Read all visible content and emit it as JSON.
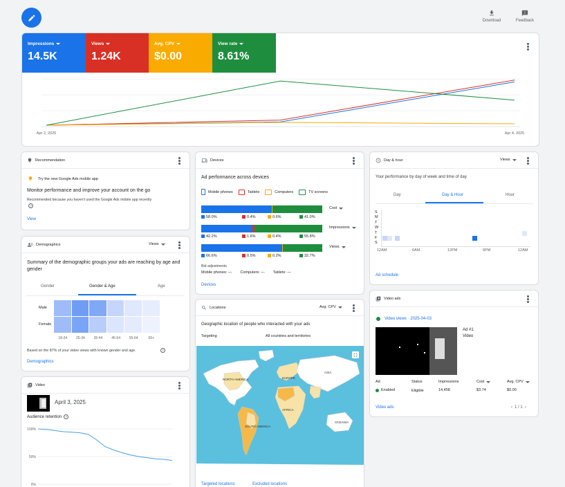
{
  "toolbar": {
    "download_label": "Download",
    "feedback_label": "Feedback"
  },
  "metrics": [
    {
      "label": "Impressions",
      "value": "14.5K",
      "color": "#1a73e8"
    },
    {
      "label": "Views",
      "value": "1.24K",
      "color": "#d93025"
    },
    {
      "label": "Avg. CPV",
      "value": "$0.00",
      "color": "#f9ab00"
    },
    {
      "label": "View rate",
      "value": "8.61%",
      "color": "#1e8e3e"
    }
  ],
  "chart_data": {
    "type": "line",
    "x": [
      "Apr 2, 2025",
      "Apr 3, 2025",
      "Apr 4, 2025"
    ],
    "x_tick_labels": [
      "Apr 2, 2025",
      "Apr 4, 2025"
    ],
    "series": [
      {
        "name": "Impressions",
        "color": "#1a73e8",
        "values": [
          0.03,
          0.1,
          0.96
        ]
      },
      {
        "name": "Views",
        "color": "#d93025",
        "values": [
          0.03,
          0.14,
          1.0
        ]
      },
      {
        "name": "Avg. CPV",
        "color": "#f9ab00",
        "values": [
          0.03,
          0.09,
          0.06
        ]
      },
      {
        "name": "View rate",
        "color": "#1e8e3e",
        "values": [
          0.03,
          0.98,
          0.57
        ]
      }
    ],
    "ylim": [
      0,
      1.1
    ],
    "grid": true,
    "legend": "none"
  },
  "recommendation": {
    "title": "Recommendation",
    "tip": "Try the new Google Ads mobile app",
    "heading": "Monitor performance and improve your account on the go",
    "reason": "Recommended because you haven't used the Google Ads mobile app recently",
    "link": "View"
  },
  "demographics": {
    "title": "Demographics",
    "dropdown": "Views",
    "summary": "Summary of the demographic groups your ads are reaching by age and gender",
    "tabs": [
      "Gender",
      "Gender & Age",
      "Age"
    ],
    "active_tab": 1,
    "rows": [
      "Male",
      "Female"
    ],
    "cols": [
      "18-24",
      "25-34",
      "35-44",
      "45-54",
      "55-64",
      "65+"
    ],
    "heat_colors": [
      [
        "#9fbcf8",
        "#6f9df4",
        "#80a8f6",
        "#c6d6fb",
        "#dfe8fd",
        "#e6edfd"
      ],
      [
        "#9fbcf8",
        "#7aa4f5",
        "#b8cdfa",
        "#dbe5fd",
        "#e4ebfd",
        "#eef2fe"
      ]
    ],
    "footnote": "Based on the 87% of your video views with known gender and age.",
    "link": "Demographics"
  },
  "video": {
    "title": "Video",
    "date": "April 3, 2025",
    "retention_label": "Audience retention",
    "y_ticks": [
      "100%",
      "50%",
      "0%"
    ],
    "retention": [
      1.0,
      0.99,
      0.97,
      0.95,
      0.94,
      0.93,
      0.9,
      0.8,
      0.68,
      0.62,
      0.57,
      0.53,
      0.5,
      0.48,
      0.46,
      0.45,
      0.43
    ]
  },
  "devices": {
    "title": "Devices",
    "subtitle": "Ad performance across devices",
    "legend": [
      {
        "label": "Mobile phones",
        "color": "#1a73e8"
      },
      {
        "label": "Tablets",
        "color": "#d93025"
      },
      {
        "label": "Computers",
        "color": "#f9ab00"
      },
      {
        "label": "TV screens",
        "color": "#1e8e3e"
      }
    ],
    "rows": [
      {
        "metric": "Cost",
        "values": [
          58.0,
          0.4,
          0.6,
          41.0
        ],
        "labels": [
          "58.0%",
          "0.4%",
          "0.6%",
          "41.0%"
        ]
      },
      {
        "metric": "Impressions",
        "values": [
          42.2,
          1.6,
          0.4,
          55.8
        ],
        "labels": [
          "42.2%",
          "1.6%",
          "0.4%",
          "55.8%"
        ]
      },
      {
        "metric": "Views",
        "values": [
          66.6,
          0.5,
          0.2,
          32.7
        ],
        "labels": [
          "66.6%",
          "0.5%",
          "0.2%",
          "32.7%"
        ]
      }
    ],
    "bid_title": "Bid adjustments",
    "bid_items": [
      "Mobile phones: —",
      "Computers: —",
      "Tablets: —"
    ],
    "link": "Devices"
  },
  "locations": {
    "title": "Locations",
    "dropdown": "Avg. CPV",
    "subtitle": "Geographic location of people who interacted with your ads",
    "targeting_label": "Targeting",
    "targeting_value": "All countries and territories",
    "map_labels": [
      "NORTH AMERICA",
      "EUROPE",
      "ASIA",
      "AFRICA",
      "SOUTH AMERICA",
      "OCEANIA"
    ],
    "links": [
      "Targeted locations",
      "Excluded locations"
    ]
  },
  "dayhour": {
    "title": "Day & hour",
    "dropdown": "Views",
    "subtitle": "Your performance by day of week and time of day",
    "tabs": [
      "Day",
      "Day & Hour",
      "Hour"
    ],
    "active_tab": 1,
    "days": [
      "S",
      "M",
      "T",
      "W",
      "T",
      "F",
      "S"
    ],
    "hours": [
      "12AM",
      "6AM",
      "12PM",
      "6PM",
      "12AM"
    ],
    "link": "Ad schedule"
  },
  "videoads": {
    "title": "Video ads",
    "status_title": "Video views · 2025-04-03",
    "ad_name": "Ad #1",
    "ad_type": "Video",
    "headers": [
      "Ad",
      "Status",
      "Impressions",
      "Cost",
      "Avg. CPV"
    ],
    "row": [
      "Enabled",
      "Eligible",
      "14,458",
      "$3.74",
      "$0.00"
    ],
    "pager": "1 / 1",
    "link": "Video ads"
  }
}
